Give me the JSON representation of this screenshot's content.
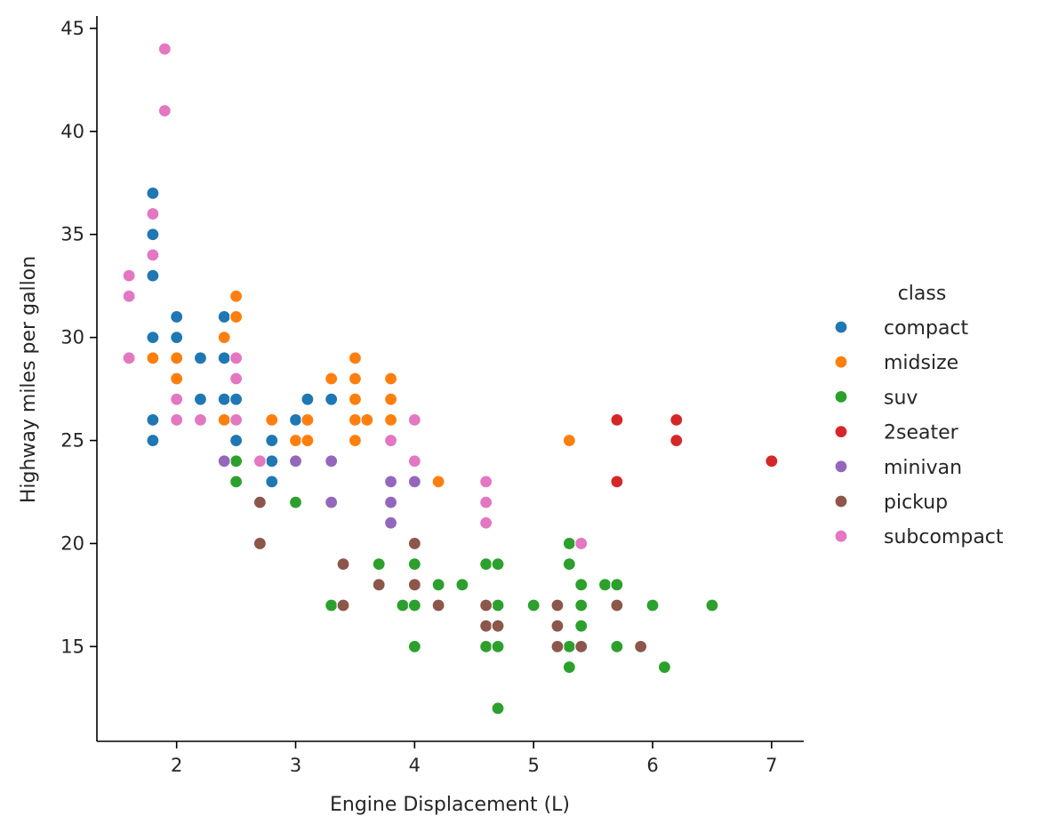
{
  "chart_data": {
    "type": "scatter",
    "title": "",
    "xlabel": "Engine Displacement (L)",
    "ylabel": "Highway miles per gallon",
    "xlim": [
      1.33,
      7.27
    ],
    "ylim": [
      10.4,
      45.6
    ],
    "xticks": [
      2,
      3,
      4,
      5,
      6,
      7
    ],
    "yticks": [
      15,
      20,
      25,
      30,
      35,
      40,
      45
    ],
    "grid": false,
    "legend": {
      "title": "class",
      "placement": "right"
    },
    "series": [
      {
        "name": "compact",
        "color": "#1f77b4",
        "points": [
          [
            1.8,
            37
          ],
          [
            1.8,
            35
          ],
          [
            1.8,
            33
          ],
          [
            1.8,
            30
          ],
          [
            1.8,
            26
          ],
          [
            1.8,
            25
          ],
          [
            2.0,
            31
          ],
          [
            2.0,
            30
          ],
          [
            2.2,
            29
          ],
          [
            2.2,
            27
          ],
          [
            2.4,
            31
          ],
          [
            2.4,
            29
          ],
          [
            2.4,
            27
          ],
          [
            2.5,
            27
          ],
          [
            2.5,
            25
          ],
          [
            2.8,
            25
          ],
          [
            2.8,
            24
          ],
          [
            2.8,
            23
          ],
          [
            3.0,
            26
          ],
          [
            3.1,
            27
          ],
          [
            3.3,
            27
          ]
        ]
      },
      {
        "name": "midsize",
        "color": "#ff7f0e",
        "points": [
          [
            1.8,
            29
          ],
          [
            2.0,
            29
          ],
          [
            2.0,
            28
          ],
          [
            2.4,
            30
          ],
          [
            2.4,
            26
          ],
          [
            2.5,
            32
          ],
          [
            2.5,
            31
          ],
          [
            2.8,
            26
          ],
          [
            3.0,
            25
          ],
          [
            3.1,
            26
          ],
          [
            3.1,
            25
          ],
          [
            3.3,
            28
          ],
          [
            3.5,
            29
          ],
          [
            3.5,
            28
          ],
          [
            3.5,
            27
          ],
          [
            3.5,
            26
          ],
          [
            3.5,
            25
          ],
          [
            3.6,
            26
          ],
          [
            3.8,
            28
          ],
          [
            3.8,
            27
          ],
          [
            3.8,
            26
          ],
          [
            4.2,
            23
          ],
          [
            5.3,
            25
          ]
        ]
      },
      {
        "name": "suv",
        "color": "#2ca02c",
        "points": [
          [
            2.5,
            24
          ],
          [
            2.5,
            23
          ],
          [
            3.0,
            22
          ],
          [
            3.3,
            17
          ],
          [
            3.7,
            19
          ],
          [
            3.9,
            17
          ],
          [
            4.0,
            19
          ],
          [
            4.0,
            17
          ],
          [
            4.0,
            15
          ],
          [
            4.2,
            18
          ],
          [
            4.4,
            18
          ],
          [
            4.6,
            19
          ],
          [
            4.6,
            15
          ],
          [
            4.7,
            19
          ],
          [
            4.7,
            17
          ],
          [
            4.7,
            15
          ],
          [
            4.7,
            12
          ],
          [
            5.0,
            17
          ],
          [
            5.3,
            20
          ],
          [
            5.3,
            19
          ],
          [
            5.3,
            15
          ],
          [
            5.3,
            14
          ],
          [
            5.4,
            18
          ],
          [
            5.4,
            17
          ],
          [
            5.4,
            16
          ],
          [
            5.6,
            18
          ],
          [
            5.7,
            18
          ],
          [
            5.7,
            15
          ],
          [
            6.0,
            17
          ],
          [
            6.1,
            14
          ],
          [
            6.5,
            17
          ]
        ]
      },
      {
        "name": "2seater",
        "color": "#d62728",
        "points": [
          [
            5.7,
            26
          ],
          [
            5.7,
            23
          ],
          [
            6.2,
            26
          ],
          [
            6.2,
            25
          ],
          [
            7.0,
            24
          ]
        ]
      },
      {
        "name": "minivan",
        "color": "#9467bd",
        "points": [
          [
            2.4,
            24
          ],
          [
            3.0,
            24
          ],
          [
            3.3,
            24
          ],
          [
            3.3,
            22
          ],
          [
            3.8,
            23
          ],
          [
            3.8,
            22
          ],
          [
            3.8,
            21
          ],
          [
            4.0,
            23
          ]
        ]
      },
      {
        "name": "pickup",
        "color": "#8c564b",
        "points": [
          [
            2.7,
            22
          ],
          [
            2.7,
            20
          ],
          [
            3.4,
            19
          ],
          [
            3.4,
            17
          ],
          [
            3.7,
            18
          ],
          [
            4.0,
            20
          ],
          [
            4.0,
            18
          ],
          [
            4.2,
            17
          ],
          [
            4.6,
            17
          ],
          [
            4.6,
            16
          ],
          [
            4.7,
            16
          ],
          [
            5.2,
            17
          ],
          [
            5.2,
            16
          ],
          [
            5.2,
            15
          ],
          [
            5.4,
            15
          ],
          [
            5.7,
            17
          ],
          [
            5.9,
            15
          ]
        ]
      },
      {
        "name": "subcompact",
        "color": "#e377c2",
        "points": [
          [
            1.6,
            33
          ],
          [
            1.6,
            32
          ],
          [
            1.6,
            29
          ],
          [
            1.8,
            36
          ],
          [
            1.8,
            34
          ],
          [
            1.9,
            44
          ],
          [
            1.9,
            41
          ],
          [
            2.0,
            27
          ],
          [
            2.0,
            26
          ],
          [
            2.2,
            26
          ],
          [
            2.5,
            29
          ],
          [
            2.5,
            28
          ],
          [
            2.5,
            26
          ],
          [
            2.7,
            24
          ],
          [
            3.8,
            25
          ],
          [
            4.0,
            26
          ],
          [
            4.0,
            24
          ],
          [
            4.6,
            23
          ],
          [
            4.6,
            22
          ],
          [
            4.6,
            21
          ],
          [
            5.4,
            20
          ]
        ]
      }
    ]
  }
}
